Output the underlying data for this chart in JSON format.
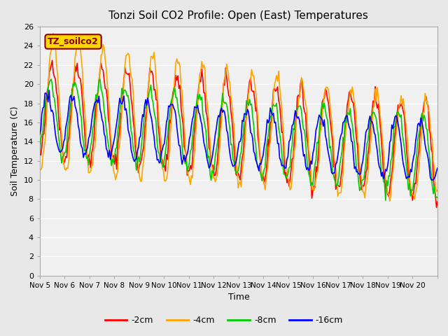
{
  "title": "Tonzi Soil CO2 Profile: Open (East) Temperatures",
  "xlabel": "Time",
  "ylabel": "Soil Temperature (C)",
  "ylim": [
    0,
    26
  ],
  "yticks": [
    0,
    2,
    4,
    6,
    8,
    10,
    12,
    14,
    16,
    18,
    20,
    22,
    24,
    26
  ],
  "x_labels": [
    "Nov 5",
    "Nov 6",
    "Nov 7",
    "Nov 8",
    "Nov 9",
    "Nov 10",
    "Nov 11",
    "Nov 12",
    "Nov 13",
    "Nov 14",
    "Nov 15",
    "Nov 16",
    "Nov 17",
    "Nov 18",
    "Nov 19",
    "Nov 20"
  ],
  "annotation_text": "TZ_soilco2",
  "annotation_color": "#8B0000",
  "annotation_bg": "#FFD700",
  "colors": {
    "-2cm": "#FF0000",
    "-4cm": "#FFA500",
    "-8cm": "#00CC00",
    "-16cm": "#0000FF"
  },
  "legend_labels": [
    "-2cm",
    "-4cm",
    "-8cm",
    "-16cm"
  ],
  "background_color": "#E8E8E8",
  "plot_bg_color": "#F0F0F0",
  "grid_color": "#FFFFFF",
  "n_points": 360
}
